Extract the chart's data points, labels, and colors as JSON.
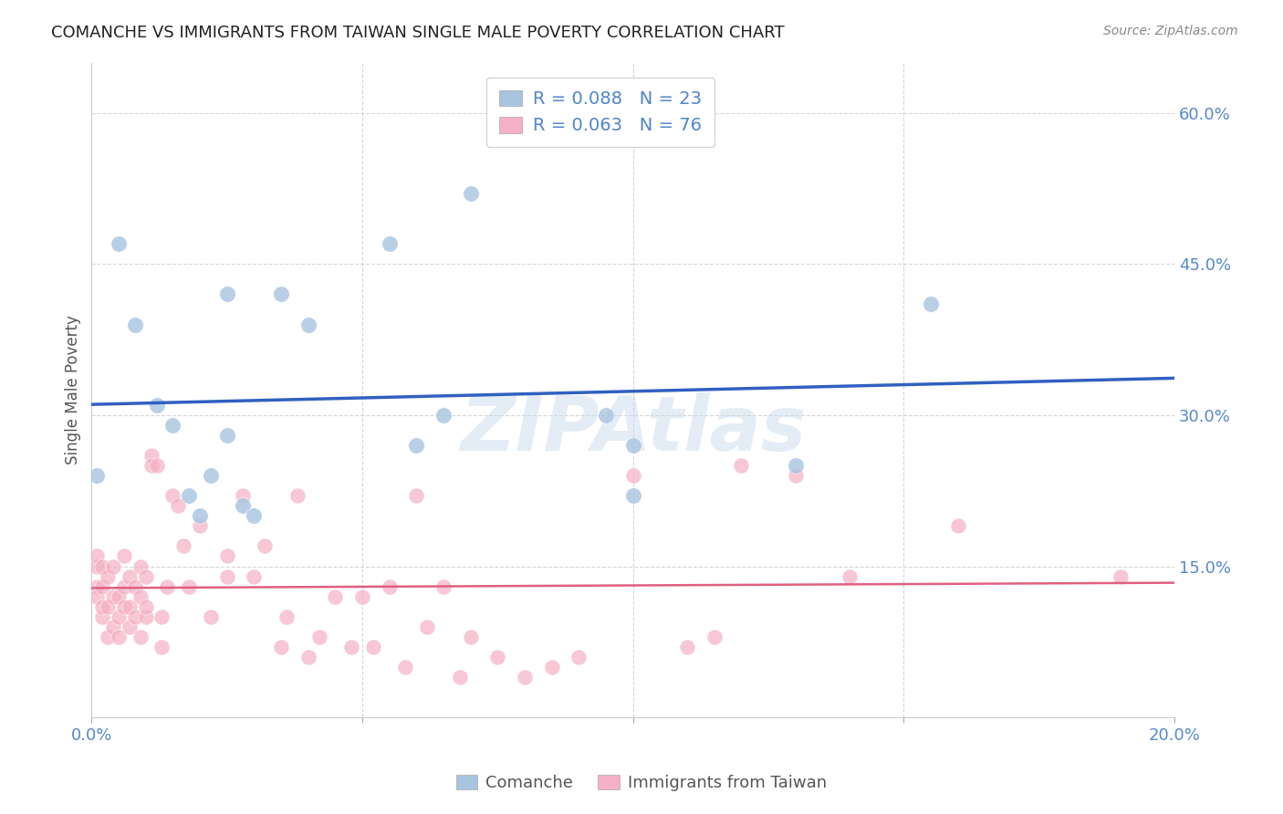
{
  "title": "COMANCHE VS IMMIGRANTS FROM TAIWAN SINGLE MALE POVERTY CORRELATION CHART",
  "source": "Source: ZipAtlas.com",
  "ylabel": "Single Male Poverty",
  "x_min": 0.0,
  "x_max": 0.2,
  "y_min": 0.0,
  "y_max": 0.65,
  "x_ticks": [
    0.0,
    0.05,
    0.1,
    0.15,
    0.2
  ],
  "x_tick_labels": [
    "0.0%",
    "",
    "",
    "",
    "20.0%"
  ],
  "y_ticks": [
    0.15,
    0.3,
    0.45,
    0.6
  ],
  "y_tick_labels": [
    "15.0%",
    "30.0%",
    "45.0%",
    "60.0%"
  ],
  "comanche_color": "#a8c4e0",
  "comanche_line_color": "#3060c0",
  "taiwan_color": "#f4b0c4",
  "taiwan_line_color": "#e06080",
  "tick_color": "#5588cc",
  "comanche_x": [
    0.001,
    0.005,
    0.008,
    0.012,
    0.015,
    0.018,
    0.02,
    0.022,
    0.025,
    0.025,
    0.028,
    0.03,
    0.035,
    0.04,
    0.055,
    0.06,
    0.065,
    0.07,
    0.095,
    0.1,
    0.1,
    0.13,
    0.155
  ],
  "comanche_y": [
    0.24,
    0.47,
    0.39,
    0.31,
    0.29,
    0.22,
    0.2,
    0.24,
    0.42,
    0.28,
    0.21,
    0.2,
    0.42,
    0.39,
    0.47,
    0.27,
    0.3,
    0.52,
    0.3,
    0.27,
    0.22,
    0.25,
    0.41
  ],
  "taiwan_x": [
    0.001,
    0.001,
    0.001,
    0.001,
    0.002,
    0.002,
    0.002,
    0.002,
    0.003,
    0.003,
    0.003,
    0.004,
    0.004,
    0.004,
    0.005,
    0.005,
    0.005,
    0.006,
    0.006,
    0.006,
    0.007,
    0.007,
    0.007,
    0.008,
    0.008,
    0.009,
    0.009,
    0.009,
    0.01,
    0.01,
    0.01,
    0.011,
    0.011,
    0.012,
    0.013,
    0.013,
    0.014,
    0.015,
    0.016,
    0.017,
    0.018,
    0.02,
    0.022,
    0.025,
    0.025,
    0.028,
    0.03,
    0.032,
    0.035,
    0.036,
    0.038,
    0.04,
    0.042,
    0.045,
    0.048,
    0.05,
    0.052,
    0.055,
    0.058,
    0.06,
    0.062,
    0.065,
    0.068,
    0.07,
    0.075,
    0.08,
    0.085,
    0.09,
    0.1,
    0.11,
    0.115,
    0.12,
    0.13,
    0.14,
    0.16,
    0.19
  ],
  "taiwan_y": [
    0.13,
    0.15,
    0.16,
    0.12,
    0.1,
    0.13,
    0.15,
    0.11,
    0.08,
    0.11,
    0.14,
    0.09,
    0.12,
    0.15,
    0.12,
    0.1,
    0.08,
    0.11,
    0.13,
    0.16,
    0.09,
    0.14,
    0.11,
    0.1,
    0.13,
    0.08,
    0.12,
    0.15,
    0.14,
    0.1,
    0.11,
    0.26,
    0.25,
    0.25,
    0.07,
    0.1,
    0.13,
    0.22,
    0.21,
    0.17,
    0.13,
    0.19,
    0.1,
    0.14,
    0.16,
    0.22,
    0.14,
    0.17,
    0.07,
    0.1,
    0.22,
    0.06,
    0.08,
    0.12,
    0.07,
    0.12,
    0.07,
    0.13,
    0.05,
    0.22,
    0.09,
    0.13,
    0.04,
    0.08,
    0.06,
    0.04,
    0.05,
    0.06,
    0.24,
    0.07,
    0.08,
    0.25,
    0.24,
    0.14,
    0.19,
    0.14
  ],
  "background_color": "#ffffff",
  "watermark": "ZIPAtlas",
  "plot_bg": "#ffffff"
}
